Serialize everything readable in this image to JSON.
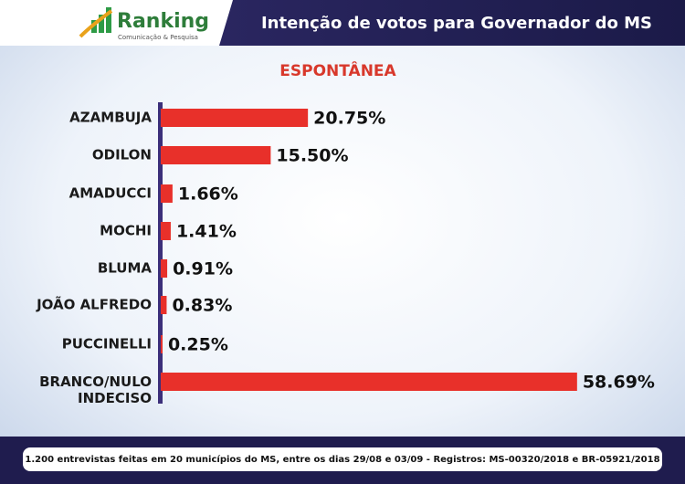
{
  "header": {
    "logo": "Ranking",
    "logo_tagline": "Comunicação & Pesquisa"
  },
  "chart_data": {
    "type": "bar",
    "orientation": "horizontal",
    "title": "Intenção de votos para Governador do MS",
    "subtitle": "ESPONTÂNEA",
    "categories": [
      "AZAMBUJA",
      "ODILON",
      "AMADUCCI",
      "MOCHI",
      "BLUMA",
      "JOÃO ALFREDO",
      "PUCCINELLI",
      "BRANCO/NULO\nINDECISO"
    ],
    "values": [
      20.75,
      15.5,
      1.66,
      1.41,
      0.91,
      0.83,
      0.25,
      58.69
    ],
    "value_labels": [
      "20.75%",
      "15.50%",
      "1.66%",
      "1.41%",
      "0.91%",
      "0.83%",
      "0.25%",
      "58.69%"
    ],
    "color": "#e8302a",
    "xlim": [
      0,
      60
    ]
  },
  "footer": {
    "note": "1.200 entrevistas feitas em 20 municípios do MS, entre os dias 29/08 e 03/09 - Registros: MS-00320/2018 e BR-05921/2018"
  }
}
